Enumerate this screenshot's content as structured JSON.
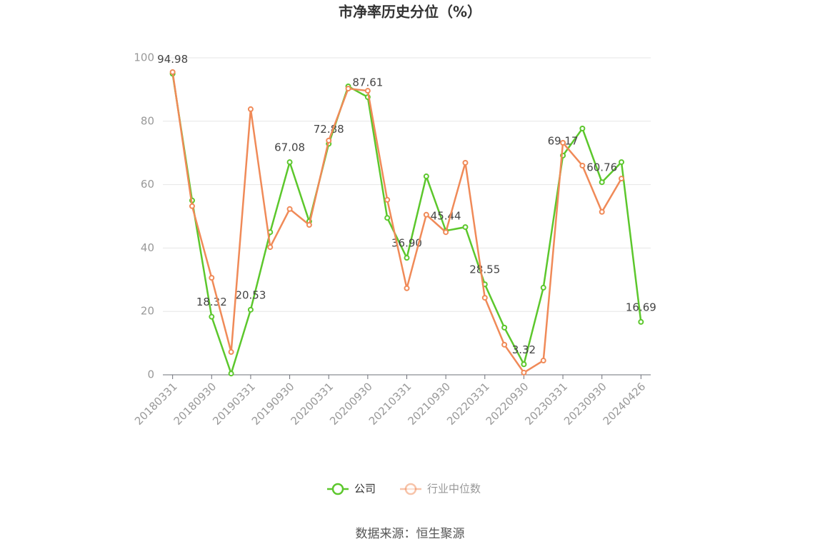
{
  "chart_data": {
    "type": "line",
    "title": "市净率历史分位（%）",
    "categories": [
      "20180331",
      null,
      "20180930",
      null,
      "20190331",
      null,
      "20190930",
      null,
      "20200331",
      null,
      "20200930",
      null,
      "20210331",
      null,
      "20210930",
      null,
      "20220331",
      null,
      "20220930",
      null,
      "20230331",
      null,
      "20230930",
      null,
      "20240426"
    ],
    "series": [
      {
        "name": "公司",
        "color": "#5cc72c",
        "values": [
          94.98,
          55,
          18.32,
          0.4,
          20.53,
          45,
          67.08,
          48.4,
          72.88,
          91,
          87.61,
          49.5,
          36.9,
          62.6,
          45.44,
          46.6,
          28.55,
          14.9,
          3.32,
          27.5,
          69.17,
          77.7,
          60.76,
          67.1,
          16.69
        ],
        "value_labels": [
          "94.98",
          null,
          "18.32",
          null,
          "20.53",
          null,
          "67.08",
          null,
          "72.88",
          null,
          "87.61",
          null,
          "36.90",
          null,
          "45.44",
          null,
          "28.55",
          null,
          "3.32",
          null,
          "69.17",
          null,
          "60.76",
          null,
          "16.69"
        ]
      },
      {
        "name": "行业中位数",
        "color": "#f08a58",
        "values": [
          95.5,
          53.2,
          30.6,
          7.2,
          83.8,
          40.3,
          52.3,
          47.3,
          73.9,
          90.3,
          89.6,
          55.2,
          27.3,
          50.5,
          45,
          66.9,
          24.3,
          9.5,
          0.7,
          4.5,
          73.2,
          66,
          51.4,
          61.9,
          null
        ]
      }
    ],
    "ylim": [
      0,
      100
    ],
    "yticks": [
      0,
      20,
      40,
      60,
      80,
      100
    ],
    "grid": true,
    "legend": "bottom",
    "source": "数据来源：恒生聚源"
  }
}
